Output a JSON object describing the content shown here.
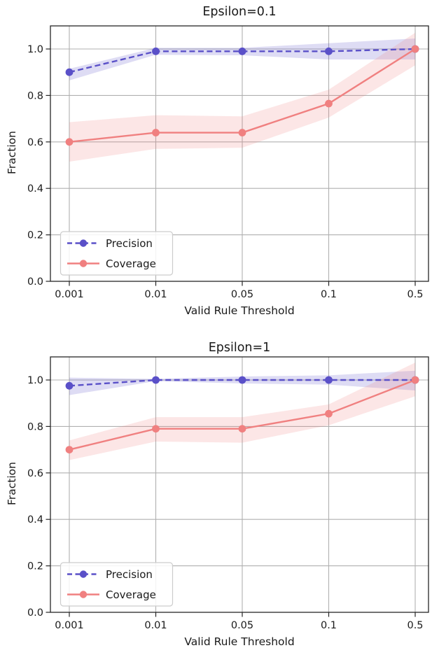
{
  "page": {
    "background": "#ffffff"
  },
  "colors": {
    "precision": "#5a50c8",
    "coverage": "#f08080",
    "grid": "#b0b0b0",
    "spine": "#262626",
    "tick_text": "#1a1a1a",
    "legend_border": "#cccccc",
    "legend_bg": "#ffffff"
  },
  "chart_data": [
    {
      "type": "line",
      "title": "Epsilon=0.1",
      "xlabel": "Valid Rule Threshold",
      "ylabel": "Fraction",
      "categories": [
        "0.001",
        "0.01",
        "0.05",
        "0.1",
        "0.5"
      ],
      "ytick_labels": [
        "0.0",
        "0.2",
        "0.4",
        "0.6",
        "0.8",
        "1.0"
      ],
      "ytick_values": [
        0,
        0.2,
        0.4,
        0.6,
        0.8,
        1.0
      ],
      "ylim": [
        0,
        1.1
      ],
      "grid": true,
      "legend_position": "lower left",
      "series": [
        {
          "name": "Precision",
          "color": "#5a50c8",
          "line_style": "dashed",
          "marker": "circle",
          "values": [
            0.9,
            0.99,
            0.99,
            0.99,
            1.0
          ],
          "band_low": [
            0.865,
            0.975,
            0.973,
            0.955,
            0.955
          ],
          "band_high": [
            0.915,
            1.005,
            1.005,
            1.025,
            1.045
          ]
        },
        {
          "name": "Coverage",
          "color": "#f08080",
          "line_style": "solid",
          "marker": "circle",
          "values": [
            0.6,
            0.64,
            0.64,
            0.765,
            1.0
          ],
          "band_low": [
            0.515,
            0.57,
            0.575,
            0.705,
            0.93
          ],
          "band_high": [
            0.685,
            0.715,
            0.71,
            0.825,
            1.07
          ]
        }
      ]
    },
    {
      "type": "line",
      "title": "Epsilon=1",
      "xlabel": "Valid Rule Threshold",
      "ylabel": "Fraction",
      "categories": [
        "0.001",
        "0.01",
        "0.05",
        "0.1",
        "0.5"
      ],
      "ytick_labels": [
        "0.0",
        "0.2",
        "0.4",
        "0.6",
        "0.8",
        "1.0"
      ],
      "ytick_values": [
        0,
        0.2,
        0.4,
        0.6,
        0.8,
        1.0
      ],
      "ylim": [
        0,
        1.1
      ],
      "grid": true,
      "legend_position": "lower left",
      "series": [
        {
          "name": "Precision",
          "color": "#5a50c8",
          "line_style": "dashed",
          "marker": "circle",
          "values": [
            0.975,
            1.0,
            1.0,
            1.0,
            1.0
          ],
          "band_low": [
            0.935,
            0.995,
            0.985,
            0.98,
            0.955
          ],
          "band_high": [
            1.01,
            1.005,
            1.015,
            1.02,
            1.04
          ]
        },
        {
          "name": "Coverage",
          "color": "#f08080",
          "line_style": "solid",
          "marker": "circle",
          "values": [
            0.7,
            0.79,
            0.79,
            0.855,
            1.0
          ],
          "band_low": [
            0.655,
            0.735,
            0.73,
            0.805,
            0.93
          ],
          "band_high": [
            0.74,
            0.84,
            0.84,
            0.895,
            1.075
          ]
        }
      ]
    }
  ]
}
